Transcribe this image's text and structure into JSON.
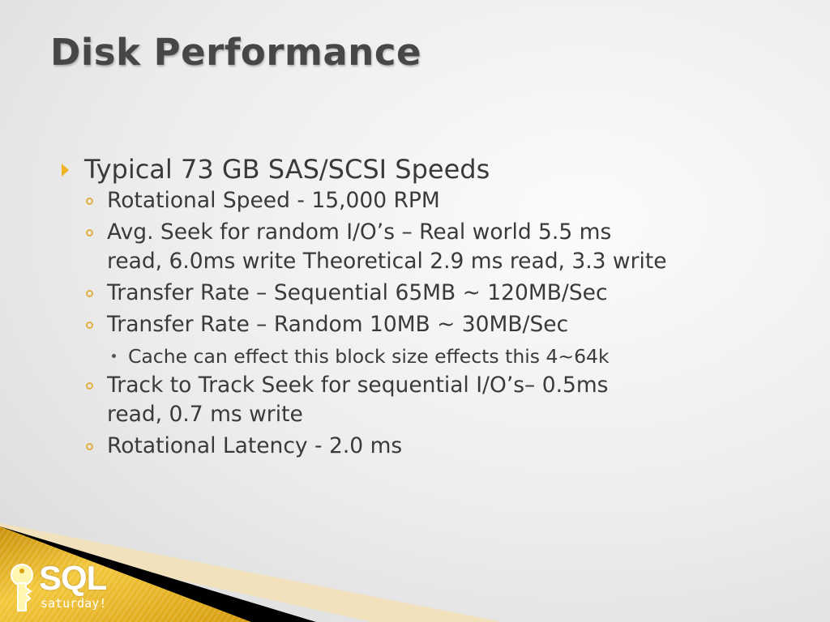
{
  "slide": {
    "title": "Disk Performance",
    "bullets": [
      {
        "level": 1,
        "lines": [
          "Typical 73 GB SAS/SCSI Speeds"
        ]
      },
      {
        "level": 2,
        "lines": [
          "Rotational Speed - 15,000 RPM"
        ]
      },
      {
        "level": 2,
        "lines": [
          "Avg. Seek for random I/O’s – Real world 5.5 ms",
          "read, 6.0ms write Theoretical 2.9 ms read, 3.3 write"
        ]
      },
      {
        "level": 2,
        "lines": [
          "Transfer Rate – Sequential 65MB ~ 120MB/Sec"
        ]
      },
      {
        "level": 2,
        "lines": [
          "Transfer Rate – Random 10MB ~ 30MB/Sec"
        ]
      },
      {
        "level": 3,
        "lines": [
          "Cache can effect this block size effects this 4~64k"
        ]
      },
      {
        "level": 2,
        "lines": [
          "Track to Track Seek for sequential I/O’s– 0.5ms",
          "read, 0.7 ms write"
        ]
      },
      {
        "level": 2,
        "lines": [
          "Rotational Latency - 2.0 ms"
        ]
      }
    ]
  },
  "logo": {
    "primary": "SQL",
    "secondary": "saturday!"
  },
  "colors": {
    "accent": "#f0b323",
    "gold": "#e2a814",
    "text": "#3a3a3a"
  }
}
